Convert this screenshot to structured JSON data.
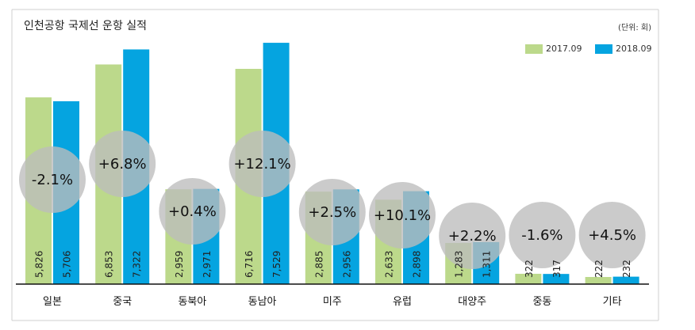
{
  "chart_data": {
    "type": "bar",
    "title": "인천공항 국제선 운항 실적",
    "unit_label": "(단위: 회)",
    "categories": [
      "일본",
      "중국",
      "동북아",
      "동남아",
      "미주",
      "유럽",
      "대양주",
      "중동",
      "기타"
    ],
    "series": [
      {
        "name": "2017.09",
        "color": "#bcd98b",
        "values": [
          5826,
          6853,
          2959,
          6716,
          2885,
          2633,
          1283,
          322,
          222
        ]
      },
      {
        "name": "2018.09",
        "color": "#05a4e0",
        "values": [
          5706,
          7322,
          2971,
          7529,
          2956,
          2898,
          1311,
          317,
          232
        ]
      }
    ],
    "value_labels": [
      [
        "5,826",
        "6,853",
        "2,959",
        "6,716",
        "2,885",
        "2,633",
        "1,283",
        "322",
        "222"
      ],
      [
        "5,706",
        "7,322",
        "2,971",
        "7,529",
        "2,956",
        "2,898",
        "1,311",
        "317",
        "232"
      ]
    ],
    "changes": [
      "-2.1%",
      "+6.8%",
      "+0.4%",
      "+12.1%",
      "+2.5%",
      "+10.1%",
      "+2.2%",
      "-1.6%",
      "+4.5%"
    ],
    "ylim": [
      0,
      8000
    ],
    "legend_position": "top-right",
    "grid": false
  }
}
